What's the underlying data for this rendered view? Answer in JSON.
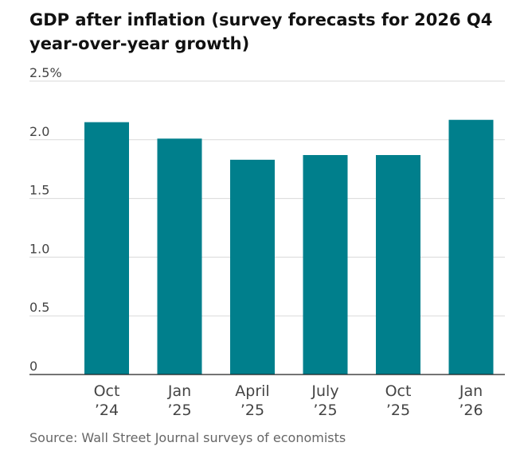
{
  "header": {
    "title": "GDP after inflation (survey forecasts for 2026 Q4 year-over-year growth)"
  },
  "footer": {
    "source": "Source: Wall Street Journal surveys of economists"
  },
  "colors": {
    "bar": "#007F8C",
    "grid": "#d9d9d9",
    "axis": "#222222"
  },
  "chart_data": {
    "type": "bar",
    "title": "GDP after inflation (survey forecasts for 2026 Q4 year-over-year growth)",
    "categories": [
      [
        "Oct",
        "’24"
      ],
      [
        "Jan",
        "’25"
      ],
      [
        "April",
        "’25"
      ],
      [
        "July",
        "’25"
      ],
      [
        "Oct",
        "’25"
      ],
      [
        "Jan",
        "’26"
      ]
    ],
    "values": [
      2.15,
      2.01,
      1.83,
      1.87,
      1.87,
      2.17
    ],
    "ylim": [
      0,
      2.5
    ],
    "yticks": [
      0,
      0.5,
      1.0,
      1.5,
      2.0,
      2.5
    ],
    "ytick_labels": [
      "0",
      "0.5",
      "1.0",
      "1.5",
      "2.0",
      "2.5%"
    ],
    "grid": true
  }
}
